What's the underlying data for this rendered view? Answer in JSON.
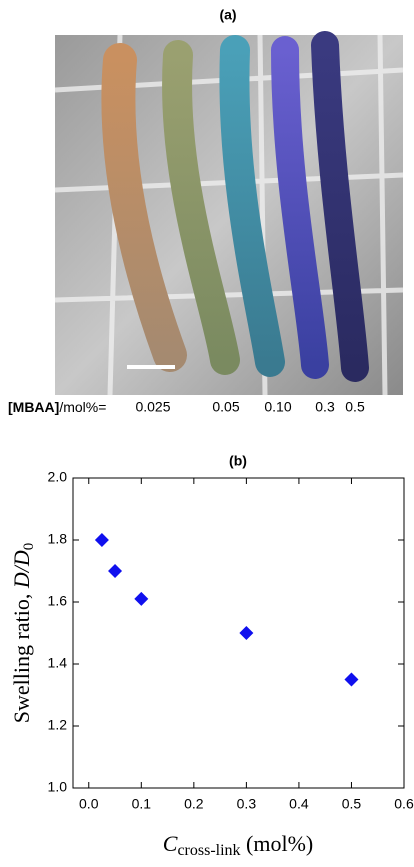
{
  "panel_a": {
    "title": "(a)",
    "label_bold": "[MBAA]",
    "label_unit": "/mol%=",
    "concentrations": [
      "0.025",
      "0.05",
      "0.10",
      "0.3",
      "0.5"
    ]
  },
  "chart_data": {
    "type": "scatter",
    "title": "(b)",
    "y_label": {
      "text": "Swelling ratio, ",
      "var": "D/D",
      "sub": "0"
    },
    "x_label": {
      "var": "C",
      "sub": "cross-link",
      "text": " (mol%)"
    },
    "x": [
      0.025,
      0.05,
      0.1,
      0.3,
      0.5
    ],
    "values": [
      1.8,
      1.7,
      1.61,
      1.5,
      1.35
    ],
    "color": "#1010ee",
    "xlim": [
      -0.03,
      0.6
    ],
    "ylim": [
      1.0,
      2.0
    ],
    "xticks": [
      {
        "value": 0.0,
        "label": "0.0"
      },
      0.1,
      0.2,
      0.3,
      0.4,
      0.5,
      0.6
    ],
    "yticks": [
      {
        "value": 1.0,
        "label": "1.0"
      },
      1.2,
      1.4,
      1.6,
      1.8,
      {
        "value": 2.0,
        "label": "2.0"
      }
    ]
  }
}
